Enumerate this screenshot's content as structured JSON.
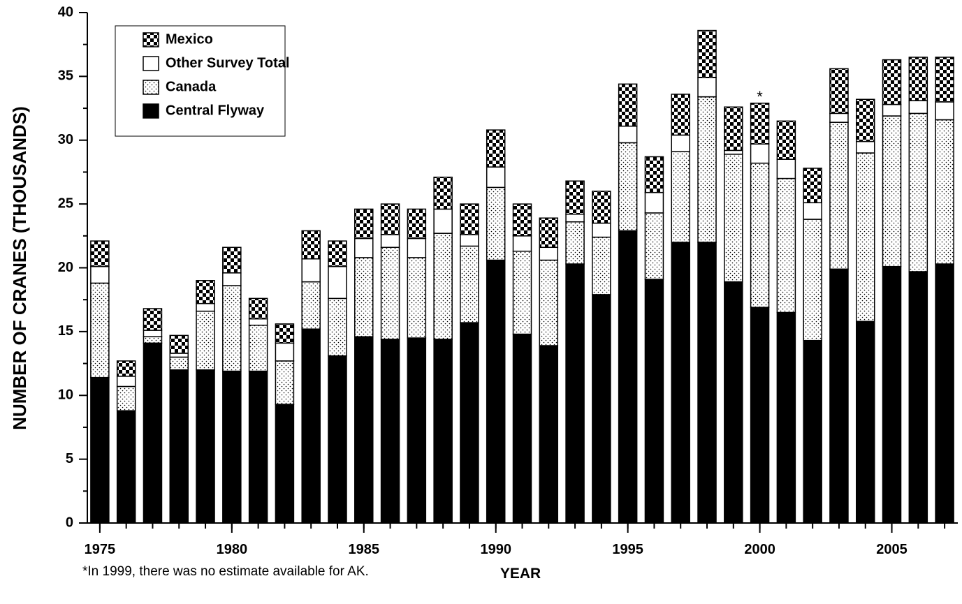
{
  "chart_data": {
    "type": "stacked_bar",
    "x": [
      1975,
      1976,
      1977,
      1978,
      1979,
      1980,
      1981,
      1982,
      1983,
      1984,
      1985,
      1986,
      1987,
      1988,
      1989,
      1990,
      1991,
      1992,
      1993,
      1994,
      1995,
      1996,
      1997,
      1998,
      1999,
      2000,
      2001,
      2002,
      2003,
      2004,
      2005,
      2006,
      2007
    ],
    "xlim": [
      1974.5,
      2007.5
    ],
    "xticks": [
      1975,
      1980,
      1985,
      1990,
      1995,
      2000,
      2005
    ],
    "ylim": [
      0,
      40
    ],
    "yticks": [
      0,
      5,
      10,
      15,
      20,
      25,
      30,
      35,
      40
    ],
    "x_label": "YEAR",
    "y_label": "NUMBER OF CRANES (THOUSANDS)",
    "annotation": {
      "text": "*",
      "x": 2000
    },
    "footnote": "*In 1999, there was no estimate available for AK.",
    "legend_position": "upper left",
    "series": [
      {
        "name": "Central Flyway",
        "color": "#000000",
        "pattern": "solid",
        "values": [
          11.4,
          8.8,
          14.1,
          12.0,
          12.0,
          11.9,
          11.9,
          9.3,
          15.2,
          13.1,
          14.6,
          14.4,
          14.5,
          14.4,
          15.7,
          20.6,
          14.8,
          13.9,
          20.3,
          17.9,
          22.9,
          19.1,
          22.0,
          22.0,
          18.9,
          16.9,
          16.5,
          14.3,
          19.9,
          15.8,
          20.1,
          19.7,
          20.3
        ]
      },
      {
        "name": "Canada",
        "color": "#000000",
        "pattern": "dots",
        "values": [
          7.4,
          1.9,
          0.5,
          1.0,
          4.6,
          6.7,
          3.6,
          3.4,
          3.7,
          4.5,
          6.2,
          7.2,
          6.3,
          8.3,
          6.0,
          5.7,
          6.5,
          6.7,
          3.3,
          4.5,
          6.9,
          5.2,
          7.1,
          11.4,
          10.0,
          11.3,
          10.5,
          9.5,
          11.5,
          13.2,
          11.8,
          12.4,
          11.3
        ]
      },
      {
        "name": "Other Survey Total",
        "color": "#ffffff",
        "pattern": "none",
        "values": [
          1.3,
          0.8,
          0.5,
          0.3,
          0.6,
          1.0,
          0.5,
          1.4,
          1.8,
          2.5,
          1.5,
          1.0,
          1.5,
          1.9,
          0.9,
          1.6,
          1.2,
          1.0,
          0.6,
          1.1,
          1.3,
          1.6,
          1.3,
          1.5,
          0.3,
          1.5,
          1.5,
          1.3,
          0.7,
          0.9,
          0.9,
          1.0,
          1.4
        ]
      },
      {
        "name": "Mexico",
        "color": "#000000",
        "pattern": "checker",
        "values": [
          2.0,
          1.2,
          1.7,
          1.4,
          1.8,
          2.0,
          1.6,
          1.5,
          2.2,
          2.0,
          2.3,
          2.4,
          2.3,
          2.5,
          2.4,
          2.9,
          2.5,
          2.3,
          2.6,
          2.5,
          3.3,
          2.8,
          3.2,
          3.7,
          3.4,
          3.2,
          3.0,
          2.7,
          3.5,
          3.3,
          3.5,
          3.4,
          3.5
        ]
      }
    ]
  }
}
